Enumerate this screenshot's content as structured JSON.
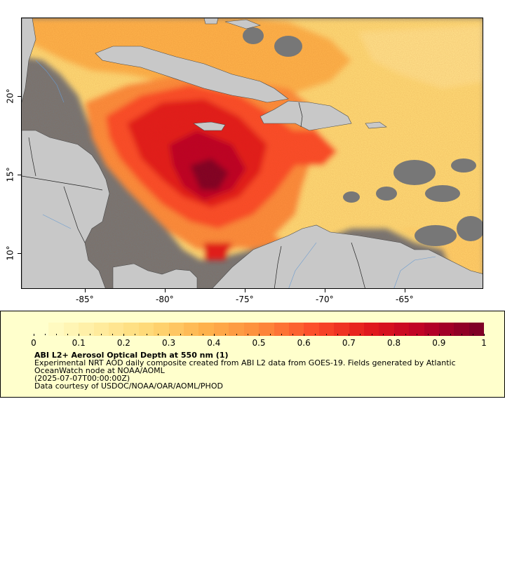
{
  "map": {
    "lon_ticks": [
      "-85°",
      "-80°",
      "-75°",
      "-70°",
      "-65°"
    ],
    "lat_ticks": [
      "10°",
      "15°",
      "20°"
    ],
    "colors": {
      "land": "#c8c8c8",
      "no_data": "#777777",
      "coast": "#4a4a4a",
      "rivers": "#6a9bd0"
    }
  },
  "legend": {
    "colorbar_labels": [
      "0",
      "0.1",
      "0.2",
      "0.3",
      "0.4",
      "0.5",
      "0.6",
      "0.7",
      "0.8",
      "0.9",
      "1"
    ],
    "colorbar_colors": [
      "#ffffcc",
      "#ffeda0",
      "#fed976",
      "#feb24c",
      "#fd8d3c",
      "#fc4e2a",
      "#e31a1c",
      "#bd0026",
      "#800026"
    ],
    "title": "ABI L2+ Aerosol Optical Depth at 550 nm (1)",
    "description": "Experimental NRT AOD daily composite created from ABI L2 data from GOES-19. Fields generated by Atlantic OceanWatch node at NOAA/AOML",
    "date": "(2025-07-07T00:00:00Z)",
    "credit": "Data courtesy of USDOC/NOAA/OAR/AOML/PHOD"
  }
}
